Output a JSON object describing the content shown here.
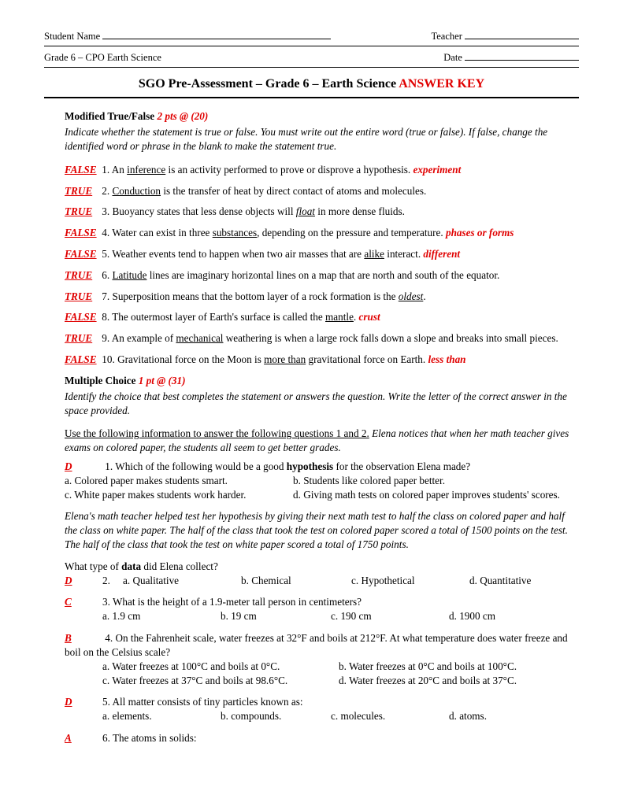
{
  "header": {
    "studentName": "Student Name",
    "teacher": "Teacher",
    "course": "Grade 6 – CPO Earth Science",
    "date": "Date"
  },
  "title": {
    "main": "SGO Pre-Assessment – Grade 6 – Earth Science ",
    "key": "ANSWER KEY"
  },
  "tf": {
    "heading": "Modified True/False ",
    "points": "2 pts @ (20)",
    "instructions": "Indicate whether the statement is true or false.  You must write out the entire word (true or false).  If false, change the identified word or phrase in the blank to make the statement true.",
    "items": [
      {
        "ans": "FALSE",
        "num": "1.  An ",
        "u": "inference",
        "rest": " is an activity performed to prove or disprove a hypothesis. ",
        "corr": "experiment"
      },
      {
        "ans": "TRUE",
        "num": "2.  ",
        "u": "Conduction",
        "rest": " is the transfer of heat by direct contact of atoms and molecules.",
        "corr": ""
      },
      {
        "ans": "TRUE",
        "num": "3.  Buoyancy states that less dense objects will ",
        "u": "float",
        "rest": " in more dense fluids.",
        "corr": ""
      },
      {
        "ans": "FALSE",
        "num": "4.  Water can exist in three ",
        "u": "substances",
        "rest": ", depending on the pressure and temperature. ",
        "corr": "phases or forms"
      },
      {
        "ans": "FALSE",
        "num": "5.  Weather events tend to happen when two air masses that are ",
        "u": "alike",
        "rest": " interact. ",
        "corr": "different"
      },
      {
        "ans": "TRUE",
        "num": "6.  ",
        "u": "Latitude",
        "rest": " lines are imaginary horizontal lines on a map that are north and south of the equator.",
        "corr": ""
      },
      {
        "ans": "TRUE",
        "num": "7.  Superposition means that the bottom layer of a rock formation is the ",
        "u": "oldest",
        "rest": ".",
        "corr": ""
      },
      {
        "ans": "FALSE",
        "num": "8.  The outermost layer of Earth's surface is called the ",
        "u": "mantle",
        "rest": ". ",
        "corr": "crust"
      },
      {
        "ans": "TRUE",
        "num": "9.  An example of ",
        "u": "mechanical",
        "rest": " weathering is when a large rock falls down a slope and breaks into small pieces.",
        "corr": ""
      },
      {
        "ans": "FALSE",
        "num": "10.  Gravitational force on the Moon is ",
        "u": "more than",
        "rest": " gravitational force on Earth. ",
        "corr": "less than"
      }
    ]
  },
  "mc": {
    "heading": "Multiple Choice  ",
    "points": "1 pt @ (31)",
    "instructions": "Identify the choice that best completes the statement or answers the question.  Write the letter of the correct answer in the space provided.",
    "passage1a": "Use the following information to answer the following questions 1 and 2.",
    "passage1b": "  Elena notices that when her math teacher gives exams on colored paper, the students all seem to get better grades.",
    "q1": {
      "ans": "D",
      "stem": "1.  Which of the following would be a good ",
      "bold": "hypothesis",
      "stem2": " for the observation Elena made?",
      "a": "a. Colored paper makes students smart.",
      "b": "b. Students like colored paper better.",
      "c": "c. White paper makes students work harder.",
      "d": "d. Giving math tests on colored paper improves students' scores."
    },
    "passage2": "Elena's math teacher helped test her hypothesis by giving their next math test to half the class on colored paper and half the class on white paper.  The half of the class that took the test on colored paper scored a total of 1500 points on the test. The half of the class that took the test on white paper scored a total of 1750 points.",
    "q2": {
      "prompt": "What type of ",
      "bold": "data",
      "prompt2": " did Elena collect?",
      "ans": "D",
      "num": "2.  ",
      "a": "a. Qualitative",
      "b": "b. Chemical",
      "c": "c. Hypothetical",
      "d": "d. Quantitative"
    },
    "q3": {
      "ans": "C",
      "stem": "3.  What is the height of a 1.9-meter tall person in centimeters?",
      "a": "a. 1.9 cm",
      "b": "b. 19 cm",
      "c": "c. 190 cm",
      "d": "d. 1900 cm"
    },
    "q4": {
      "ans": "B",
      "stem": "4.  On the Fahrenheit scale, water freezes at 32°F and boils at 212°F. At what temperature does water freeze and boil on the Celsius scale?",
      "a": "a. Water freezes at 100°C and boils at 0°C.",
      "b": "b. Water freezes at 0°C and boils at 100°C.",
      "c": "c. Water freezes at 37°C and boils at 98.6°C.",
      "d": "d. Water freezes at 20°C and boils at 37°C."
    },
    "q5": {
      "ans": "D",
      "stem": "5.  All matter consists of tiny particles known as:",
      "a": "a. elements.",
      "b": "b. compounds.",
      "c": "c. molecules.",
      "d": "d. atoms."
    },
    "q6": {
      "ans": "A",
      "stem": "6.  The atoms in solids:"
    }
  }
}
